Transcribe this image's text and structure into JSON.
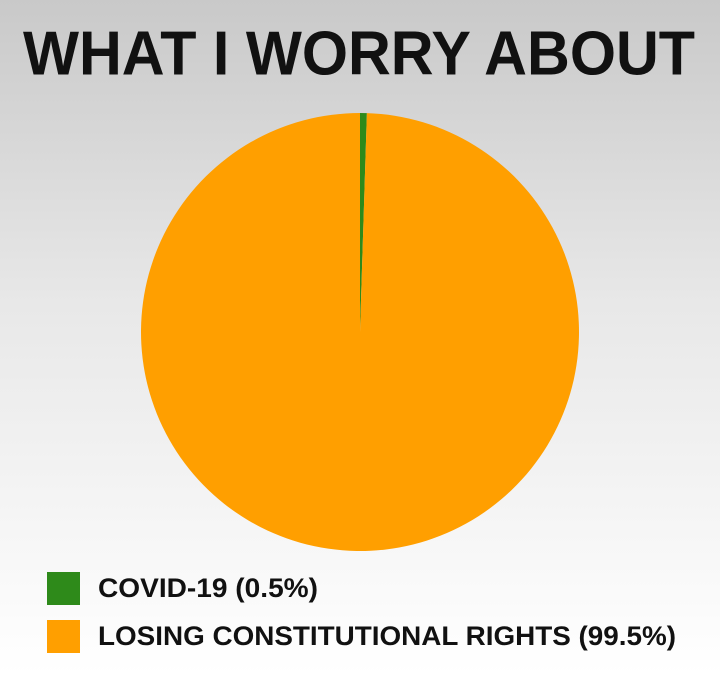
{
  "chart_data": {
    "type": "pie",
    "title": "WHAT I WORRY ABOUT",
    "categories": [
      "COVID-19 (0.5%)",
      "LOSING CONSTITUTIONAL RIGHTS (99.5%)"
    ],
    "values": [
      0.5,
      99.5
    ],
    "colors": [
      "#2e8a1a",
      "#ff9f00"
    ]
  }
}
